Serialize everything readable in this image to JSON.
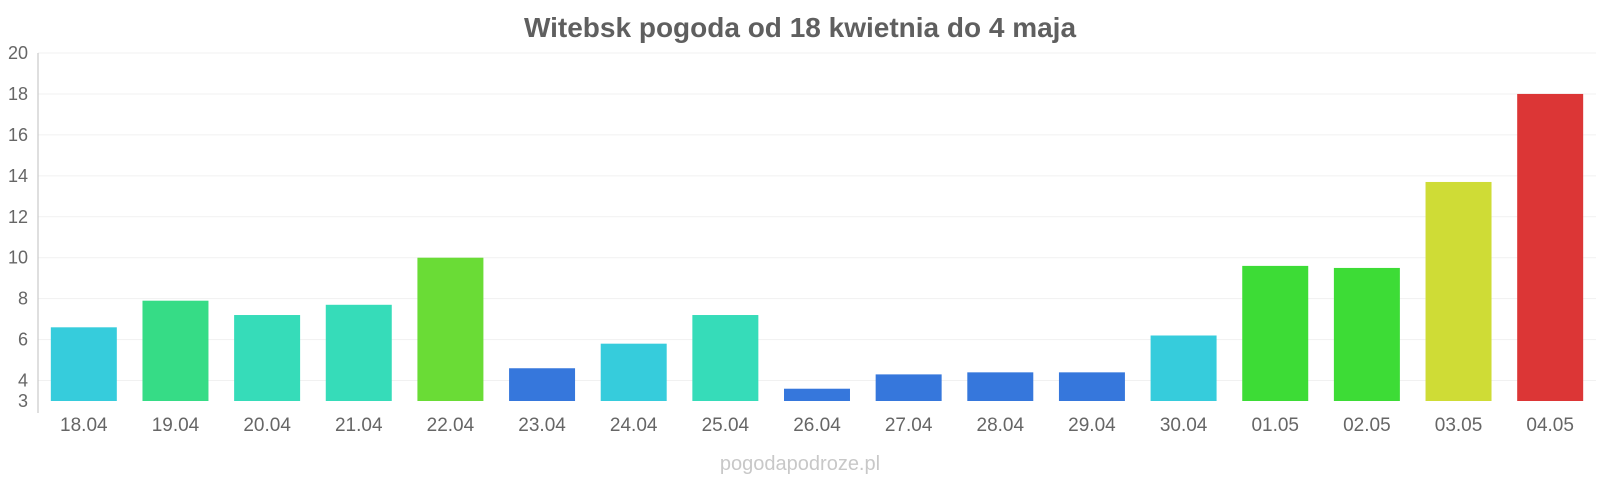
{
  "chart_data": {
    "type": "bar",
    "title": "Witebsk pogoda od 18 kwietnia do 4 maja",
    "xlabel": "",
    "ylabel": "",
    "ylim": [
      3,
      20
    ],
    "y_ticks": [
      3,
      4,
      6,
      8,
      10,
      12,
      14,
      16,
      18,
      20
    ],
    "grid": true,
    "categories": [
      "18.04",
      "19.04",
      "20.04",
      "21.04",
      "22.04",
      "23.04",
      "24.04",
      "25.04",
      "26.04",
      "27.04",
      "28.04",
      "29.04",
      "30.04",
      "01.05",
      "02.05",
      "03.05",
      "04.05"
    ],
    "values": [
      6.6,
      7.9,
      7.2,
      7.7,
      10.0,
      4.6,
      5.8,
      7.2,
      3.6,
      4.3,
      4.4,
      4.4,
      6.2,
      9.6,
      9.5,
      13.7,
      18.0
    ],
    "colors": [
      "#36ccdc",
      "#36dc86",
      "#36dcb9",
      "#36dcb9",
      "#6adc36",
      "#3677dc",
      "#36ccdc",
      "#36dcb9",
      "#3677dc",
      "#3677dc",
      "#3677dc",
      "#3677dc",
      "#36ccdc",
      "#3ddc36",
      "#3ddc36",
      "#cfdc36",
      "#dc3636"
    ]
  },
  "footer": {
    "source": "pogodapodroze.pl"
  }
}
